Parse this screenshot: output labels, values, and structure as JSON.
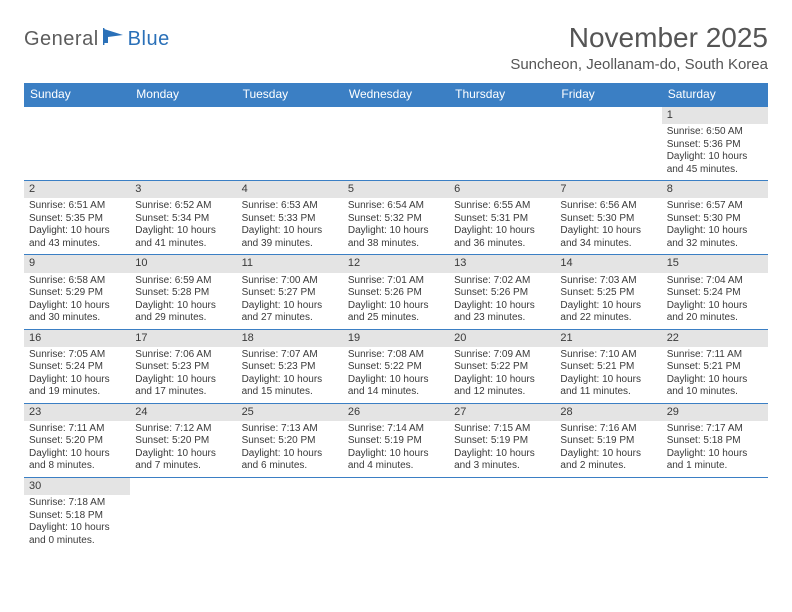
{
  "brand": {
    "part1": "General",
    "part2": "Blue"
  },
  "title": "November 2025",
  "location": "Suncheon, Jeollanam-do, South Korea",
  "colors": {
    "header_bg": "#3b7fc4",
    "header_text": "#ffffff",
    "daynum_bg": "#e4e4e4",
    "row_border": "#3b7fc4",
    "logo_gray": "#5c5c5c",
    "logo_blue": "#2a70b8",
    "body_text": "#3a3a3a",
    "page_bg": "#ffffff"
  },
  "fonts": {
    "title_size": 28,
    "location_size": 15,
    "dow_size": 12,
    "daynum_size": 11,
    "body_size": 10
  },
  "dow": [
    "Sunday",
    "Monday",
    "Tuesday",
    "Wednesday",
    "Thursday",
    "Friday",
    "Saturday"
  ],
  "weeks": [
    [
      {
        "n": "",
        "sunrise": "",
        "sunset": "",
        "daylight": ""
      },
      {
        "n": "",
        "sunrise": "",
        "sunset": "",
        "daylight": ""
      },
      {
        "n": "",
        "sunrise": "",
        "sunset": "",
        "daylight": ""
      },
      {
        "n": "",
        "sunrise": "",
        "sunset": "",
        "daylight": ""
      },
      {
        "n": "",
        "sunrise": "",
        "sunset": "",
        "daylight": ""
      },
      {
        "n": "",
        "sunrise": "",
        "sunset": "",
        "daylight": ""
      },
      {
        "n": "1",
        "sunrise": "Sunrise: 6:50 AM",
        "sunset": "Sunset: 5:36 PM",
        "daylight": "Daylight: 10 hours and 45 minutes."
      }
    ],
    [
      {
        "n": "2",
        "sunrise": "Sunrise: 6:51 AM",
        "sunset": "Sunset: 5:35 PM",
        "daylight": "Daylight: 10 hours and 43 minutes."
      },
      {
        "n": "3",
        "sunrise": "Sunrise: 6:52 AM",
        "sunset": "Sunset: 5:34 PM",
        "daylight": "Daylight: 10 hours and 41 minutes."
      },
      {
        "n": "4",
        "sunrise": "Sunrise: 6:53 AM",
        "sunset": "Sunset: 5:33 PM",
        "daylight": "Daylight: 10 hours and 39 minutes."
      },
      {
        "n": "5",
        "sunrise": "Sunrise: 6:54 AM",
        "sunset": "Sunset: 5:32 PM",
        "daylight": "Daylight: 10 hours and 38 minutes."
      },
      {
        "n": "6",
        "sunrise": "Sunrise: 6:55 AM",
        "sunset": "Sunset: 5:31 PM",
        "daylight": "Daylight: 10 hours and 36 minutes."
      },
      {
        "n": "7",
        "sunrise": "Sunrise: 6:56 AM",
        "sunset": "Sunset: 5:30 PM",
        "daylight": "Daylight: 10 hours and 34 minutes."
      },
      {
        "n": "8",
        "sunrise": "Sunrise: 6:57 AM",
        "sunset": "Sunset: 5:30 PM",
        "daylight": "Daylight: 10 hours and 32 minutes."
      }
    ],
    [
      {
        "n": "9",
        "sunrise": "Sunrise: 6:58 AM",
        "sunset": "Sunset: 5:29 PM",
        "daylight": "Daylight: 10 hours and 30 minutes."
      },
      {
        "n": "10",
        "sunrise": "Sunrise: 6:59 AM",
        "sunset": "Sunset: 5:28 PM",
        "daylight": "Daylight: 10 hours and 29 minutes."
      },
      {
        "n": "11",
        "sunrise": "Sunrise: 7:00 AM",
        "sunset": "Sunset: 5:27 PM",
        "daylight": "Daylight: 10 hours and 27 minutes."
      },
      {
        "n": "12",
        "sunrise": "Sunrise: 7:01 AM",
        "sunset": "Sunset: 5:26 PM",
        "daylight": "Daylight: 10 hours and 25 minutes."
      },
      {
        "n": "13",
        "sunrise": "Sunrise: 7:02 AM",
        "sunset": "Sunset: 5:26 PM",
        "daylight": "Daylight: 10 hours and 23 minutes."
      },
      {
        "n": "14",
        "sunrise": "Sunrise: 7:03 AM",
        "sunset": "Sunset: 5:25 PM",
        "daylight": "Daylight: 10 hours and 22 minutes."
      },
      {
        "n": "15",
        "sunrise": "Sunrise: 7:04 AM",
        "sunset": "Sunset: 5:24 PM",
        "daylight": "Daylight: 10 hours and 20 minutes."
      }
    ],
    [
      {
        "n": "16",
        "sunrise": "Sunrise: 7:05 AM",
        "sunset": "Sunset: 5:24 PM",
        "daylight": "Daylight: 10 hours and 19 minutes."
      },
      {
        "n": "17",
        "sunrise": "Sunrise: 7:06 AM",
        "sunset": "Sunset: 5:23 PM",
        "daylight": "Daylight: 10 hours and 17 minutes."
      },
      {
        "n": "18",
        "sunrise": "Sunrise: 7:07 AM",
        "sunset": "Sunset: 5:23 PM",
        "daylight": "Daylight: 10 hours and 15 minutes."
      },
      {
        "n": "19",
        "sunrise": "Sunrise: 7:08 AM",
        "sunset": "Sunset: 5:22 PM",
        "daylight": "Daylight: 10 hours and 14 minutes."
      },
      {
        "n": "20",
        "sunrise": "Sunrise: 7:09 AM",
        "sunset": "Sunset: 5:22 PM",
        "daylight": "Daylight: 10 hours and 12 minutes."
      },
      {
        "n": "21",
        "sunrise": "Sunrise: 7:10 AM",
        "sunset": "Sunset: 5:21 PM",
        "daylight": "Daylight: 10 hours and 11 minutes."
      },
      {
        "n": "22",
        "sunrise": "Sunrise: 7:11 AM",
        "sunset": "Sunset: 5:21 PM",
        "daylight": "Daylight: 10 hours and 10 minutes."
      }
    ],
    [
      {
        "n": "23",
        "sunrise": "Sunrise: 7:11 AM",
        "sunset": "Sunset: 5:20 PM",
        "daylight": "Daylight: 10 hours and 8 minutes."
      },
      {
        "n": "24",
        "sunrise": "Sunrise: 7:12 AM",
        "sunset": "Sunset: 5:20 PM",
        "daylight": "Daylight: 10 hours and 7 minutes."
      },
      {
        "n": "25",
        "sunrise": "Sunrise: 7:13 AM",
        "sunset": "Sunset: 5:20 PM",
        "daylight": "Daylight: 10 hours and 6 minutes."
      },
      {
        "n": "26",
        "sunrise": "Sunrise: 7:14 AM",
        "sunset": "Sunset: 5:19 PM",
        "daylight": "Daylight: 10 hours and 4 minutes."
      },
      {
        "n": "27",
        "sunrise": "Sunrise: 7:15 AM",
        "sunset": "Sunset: 5:19 PM",
        "daylight": "Daylight: 10 hours and 3 minutes."
      },
      {
        "n": "28",
        "sunrise": "Sunrise: 7:16 AM",
        "sunset": "Sunset: 5:19 PM",
        "daylight": "Daylight: 10 hours and 2 minutes."
      },
      {
        "n": "29",
        "sunrise": "Sunrise: 7:17 AM",
        "sunset": "Sunset: 5:18 PM",
        "daylight": "Daylight: 10 hours and 1 minute."
      }
    ],
    [
      {
        "n": "30",
        "sunrise": "Sunrise: 7:18 AM",
        "sunset": "Sunset: 5:18 PM",
        "daylight": "Daylight: 10 hours and 0 minutes."
      },
      {
        "n": "",
        "sunrise": "",
        "sunset": "",
        "daylight": ""
      },
      {
        "n": "",
        "sunrise": "",
        "sunset": "",
        "daylight": ""
      },
      {
        "n": "",
        "sunrise": "",
        "sunset": "",
        "daylight": ""
      },
      {
        "n": "",
        "sunrise": "",
        "sunset": "",
        "daylight": ""
      },
      {
        "n": "",
        "sunrise": "",
        "sunset": "",
        "daylight": ""
      },
      {
        "n": "",
        "sunrise": "",
        "sunset": "",
        "daylight": ""
      }
    ]
  ]
}
